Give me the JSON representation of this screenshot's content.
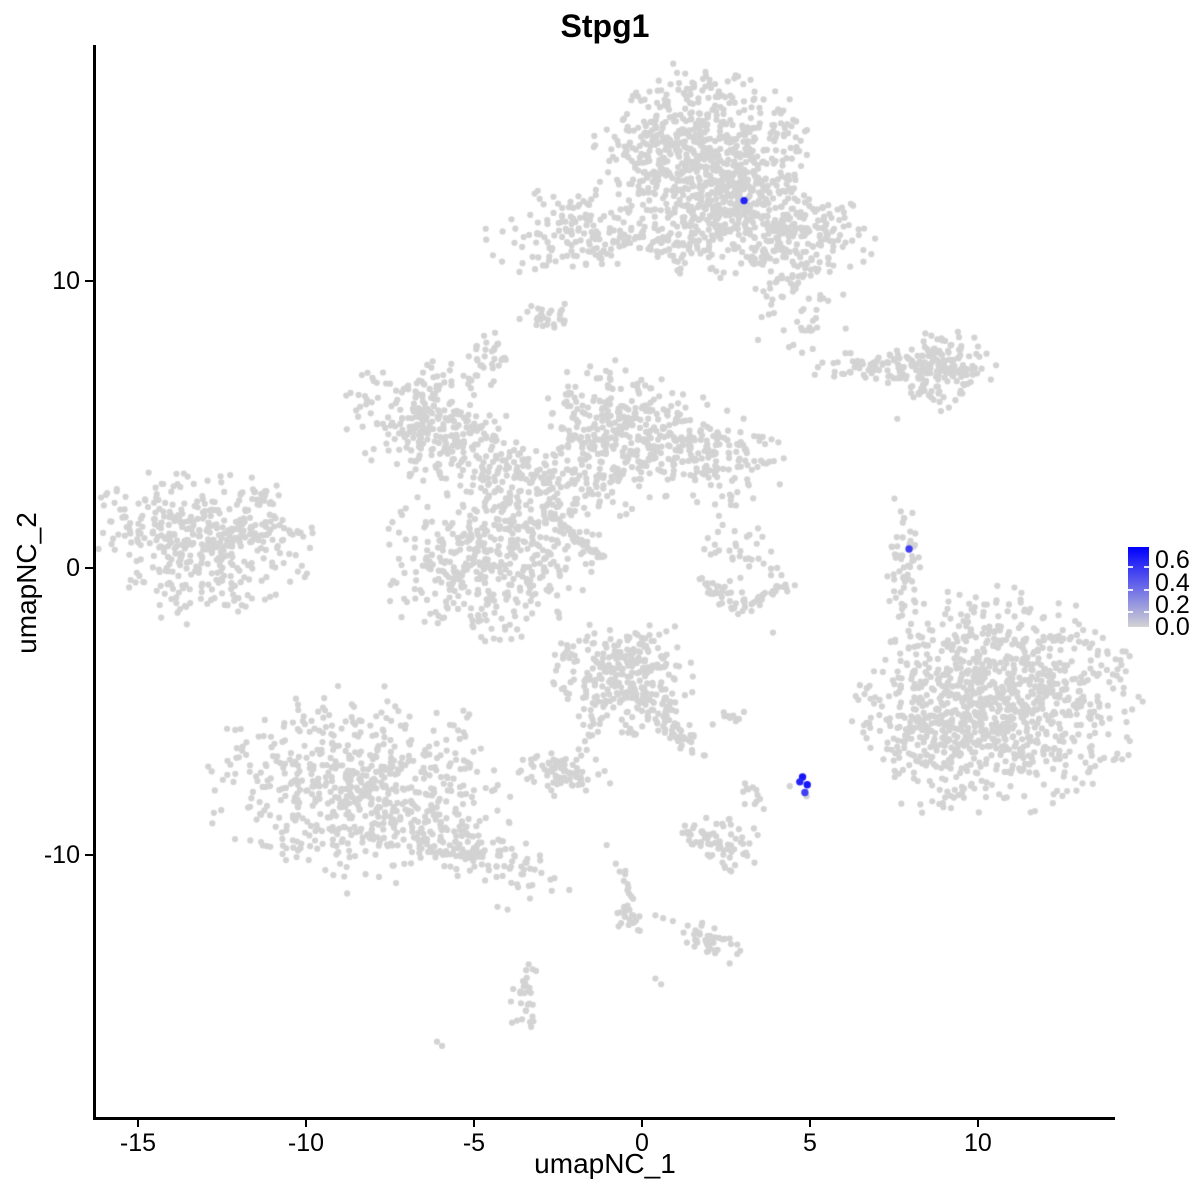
{
  "title": "Stpg1",
  "axes": {
    "x": {
      "label": "umapNC_1",
      "ticks": [
        -15,
        -10,
        -5,
        0,
        5,
        10
      ]
    },
    "y": {
      "label": "umapNC_2",
      "ticks": [
        10,
        0,
        -10
      ]
    }
  },
  "legend": {
    "labels": [
      "0.6",
      "0.4",
      "0.2",
      "0.0"
    ],
    "values": [
      0.6,
      0.4,
      0.2,
      0.0
    ],
    "max_value": 0.72,
    "low_color": "#D3D3D3",
    "high_color": "#0000FF"
  },
  "colors": {
    "background": "#FFFFFF",
    "point_gray": "#D3D3D3",
    "axis": "#000000"
  },
  "chart_data": {
    "type": "scatter",
    "title": "Stpg1",
    "xlabel": "umapNC_1",
    "ylabel": "umapNC_2",
    "xlim": [
      -16.28,
      14.08
    ],
    "ylim": [
      -19.16,
      18.22
    ],
    "grid": false,
    "legend_position": "right",
    "clusters": [
      {
        "cx": 1.7,
        "cy": 14.6,
        "sx": 1.45,
        "sy": 1.35,
        "rot": 0,
        "n": 620
      },
      {
        "cx": 2.75,
        "cy": 12.55,
        "sx": 0.95,
        "sy": 0.95,
        "rot": 0,
        "n": 260
      },
      {
        "cx": 4.65,
        "cy": 11.85,
        "sx": 1.05,
        "sy": 0.75,
        "rot": -0.3,
        "n": 170
      },
      {
        "cx": 1.55,
        "cy": 11.95,
        "sx": 0.85,
        "sy": 0.95,
        "rot": 0,
        "n": 70
      },
      {
        "cx": -2.1,
        "cy": 11.7,
        "sx": 1.15,
        "sy": 0.75,
        "rot": 0,
        "n": 140
      },
      {
        "cx": 0.5,
        "cy": 11.3,
        "sx": 1.1,
        "sy": 0.4,
        "rot": 0,
        "n": 60
      },
      {
        "cx": 4.6,
        "cy": 9.9,
        "sx": 0.85,
        "sy": 1.05,
        "rot": 0,
        "n": 90
      },
      {
        "cx": -2.9,
        "cy": 8.75,
        "sx": 0.4,
        "sy": 0.28,
        "rot": -0.5,
        "n": 26
      },
      {
        "cx": -4.6,
        "cy": 7.45,
        "sx": 0.3,
        "sy": 0.45,
        "rot": 0,
        "n": 30
      },
      {
        "cx": 7.3,
        "cy": 7.0,
        "sx": 1.1,
        "sy": 0.28,
        "rot": 0,
        "n": 85
      },
      {
        "cx": 9.0,
        "cy": 7.1,
        "sx": 0.7,
        "sy": 0.55,
        "rot": 0,
        "n": 130
      },
      {
        "cx": 8.6,
        "cy": 6.0,
        "sx": 0.38,
        "sy": 0.22,
        "rot": -0.6,
        "n": 20
      },
      {
        "cx": -13.2,
        "cy": 0.85,
        "sx": 1.5,
        "sy": 1.25,
        "rot": -0.2,
        "n": 400
      },
      {
        "cx": -11.2,
        "cy": 1.2,
        "sx": 0.75,
        "sy": 0.22,
        "rot": 0,
        "n": 40
      },
      {
        "cx": -11.4,
        "cy": 2.55,
        "sx": 0.3,
        "sy": 0.3,
        "rot": 0,
        "n": 16
      },
      {
        "cx": -6.6,
        "cy": 5.3,
        "sx": 1.05,
        "sy": 1.0,
        "rot": 0,
        "n": 210
      },
      {
        "cx": -4.8,
        "cy": 3.9,
        "sx": 1.1,
        "sy": 0.75,
        "rot": -0.4,
        "n": 150
      },
      {
        "cx": -4.5,
        "cy": 0.3,
        "sx": 1.5,
        "sy": 1.3,
        "rot": 0.3,
        "n": 430
      },
      {
        "cx": -0.95,
        "cy": 4.8,
        "sx": 0.95,
        "sy": 1.15,
        "rot": 0,
        "n": 220
      },
      {
        "cx": 1.4,
        "cy": 4.1,
        "sx": 1.35,
        "sy": 0.85,
        "rot": -0.25,
        "n": 260
      },
      {
        "cx": -2.6,
        "cy": 2.7,
        "sx": 1.15,
        "sy": 0.8,
        "rot": 0,
        "n": 130
      },
      {
        "cx": 3.0,
        "cy": 0.8,
        "sx": 0.5,
        "sy": 0.8,
        "rot": 0,
        "n": 35
      },
      {
        "cx": 7.8,
        "cy": 0.05,
        "sx": 0.22,
        "sy": 1.25,
        "rot": 0,
        "n": 55
      },
      {
        "cx": 10.6,
        "cy": -4.6,
        "sx": 1.95,
        "sy": 1.75,
        "rot": 0,
        "n": 950
      },
      {
        "cx": 8.7,
        "cy": -5.6,
        "sx": 0.75,
        "sy": 1.4,
        "rot": 0,
        "n": 130
      },
      {
        "cx": -8.4,
        "cy": -7.7,
        "sx": 2.1,
        "sy": 1.6,
        "rot": 0,
        "n": 640
      },
      {
        "cx": -5.1,
        "cy": -9.8,
        "sx": 1.5,
        "sy": 0.45,
        "rot": -0.46,
        "n": 130
      },
      {
        "cx": -0.5,
        "cy": -3.7,
        "sx": 1.0,
        "sy": 0.95,
        "rot": 0,
        "n": 280
      },
      {
        "cx": 0.8,
        "cy": -5.4,
        "sx": 0.75,
        "sy": 0.22,
        "rot": -0.85,
        "n": 60
      },
      {
        "cx": -2.45,
        "cy": -7.15,
        "sx": 0.6,
        "sy": 0.38,
        "rot": 0,
        "n": 70
      },
      {
        "cx": 2.6,
        "cy": -5.2,
        "sx": 0.35,
        "sy": 0.14,
        "rot": 0,
        "n": 12
      },
      {
        "cx": 3.3,
        "cy": -7.9,
        "sx": 0.22,
        "sy": 0.3,
        "rot": 0,
        "n": 12
      },
      {
        "cx": 2.2,
        "cy": -9.5,
        "sx": 0.7,
        "sy": 0.5,
        "rot": -0.3,
        "n": 70
      },
      {
        "cx": -0.3,
        "cy": -12.2,
        "sx": 0.3,
        "sy": 0.3,
        "rot": 0,
        "n": 20
      },
      {
        "cx": 2.0,
        "cy": -13.0,
        "sx": 0.55,
        "sy": 0.28,
        "rot": -0.68,
        "n": 42
      },
      {
        "cx": -3.5,
        "cy": -14.9,
        "sx": 0.22,
        "sy": 0.75,
        "rot": 0,
        "n": 30
      }
    ],
    "streaks": [
      {
        "x1": -2.65,
        "y1": 1.78,
        "x2": -1.25,
        "y2": 0.38,
        "n": 40,
        "jitter": 0.06
      },
      {
        "x1": -1.25,
        "y1": -5.1,
        "x2": -1.9,
        "y2": -6.6,
        "n": 14,
        "jitter": 0.12
      },
      {
        "x1": -0.65,
        "y1": -10.3,
        "x2": -0.25,
        "y2": -12.0,
        "n": 14,
        "jitter": 0.1
      },
      {
        "x1": 1.7,
        "y1": -0.5,
        "x2": 3.0,
        "y2": -1.3,
        "n": 30,
        "jitter": 0.18
      },
      {
        "x1": 3.0,
        "y1": -1.3,
        "x2": 4.4,
        "y2": -0.45,
        "n": 30,
        "jitter": 0.18
      }
    ],
    "singles": [
      [
        7.6,
        5.2
      ],
      [
        4.4,
        -7.6
      ],
      [
        4.9,
        -7.95
      ],
      [
        -0.95,
        -7.5
      ],
      [
        -1.05,
        -9.65
      ],
      [
        0.4,
        -12.1
      ],
      [
        0.63,
        -12.2
      ],
      [
        0.92,
        -12.3
      ],
      [
        -4.3,
        -11.8
      ],
      [
        -4.0,
        -11.9
      ],
      [
        0.4,
        -14.3
      ],
      [
        0.57,
        -14.5
      ],
      [
        -6.1,
        -16.5
      ],
      [
        -5.95,
        -16.65
      ],
      [
        3.9,
        -2.25
      ],
      [
        -2.3,
        9.2
      ],
      [
        2.4,
        1.5
      ],
      [
        2.7,
        0.3
      ]
    ],
    "highlighted_points": [
      {
        "x": 3.04,
        "y": 12.8,
        "value": 0.6
      },
      {
        "x": 7.95,
        "y": 0.66,
        "value": 0.5
      },
      {
        "x": 4.78,
        "y": -7.28,
        "value": 0.65
      },
      {
        "x": 4.7,
        "y": -7.45,
        "value": 0.6
      },
      {
        "x": 4.92,
        "y": -7.55,
        "value": 0.65
      },
      {
        "x": 4.85,
        "y": -7.82,
        "value": 0.5
      }
    ]
  }
}
